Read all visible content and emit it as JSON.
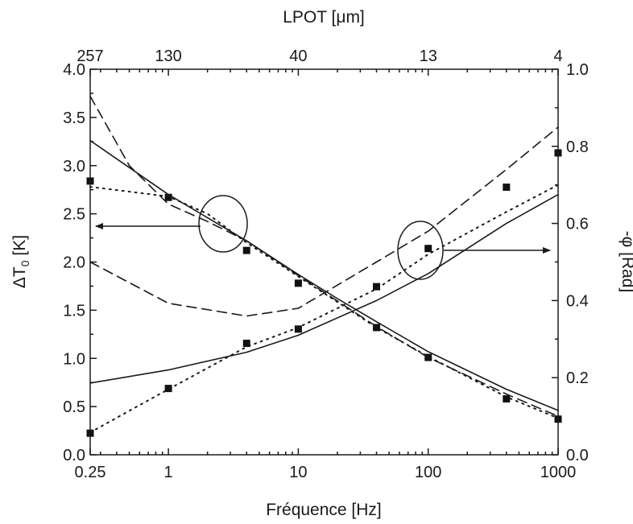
{
  "chart_data": {
    "type": "line",
    "x_scale": "log",
    "xlabel_bottom": "Fréquence [Hz]",
    "xlabel_top": "LPOT [μm]",
    "ylabel_left": "ΔT",
    "ylabel_left_subscript": "0",
    "ylabel_left_unit": "[K]",
    "ylabel_right": "-φ [Rad]",
    "xlim": [
      0.25,
      1000
    ],
    "ylim_left": [
      0,
      4
    ],
    "ylim_right": [
      0,
      1
    ],
    "bottom_ticks": [
      {
        "value": 0.25,
        "label": "0.25"
      },
      {
        "value": 1,
        "label": "1"
      },
      {
        "value": 10,
        "label": "10"
      },
      {
        "value": 100,
        "label": "100"
      },
      {
        "value": 1000,
        "label": "1000"
      }
    ],
    "top_ticks": [
      {
        "value": 0.25,
        "label": "257"
      },
      {
        "value": 1,
        "label": "130"
      },
      {
        "value": 10,
        "label": "40"
      },
      {
        "value": 100,
        "label": "13"
      },
      {
        "value": 1000,
        "label": "4"
      }
    ],
    "left_ticks": [
      {
        "value": 0.0,
        "label": "0.0"
      },
      {
        "value": 0.5,
        "label": "0.5"
      },
      {
        "value": 1.0,
        "label": "1.0"
      },
      {
        "value": 1.5,
        "label": "1.5"
      },
      {
        "value": 2.0,
        "label": "2.0"
      },
      {
        "value": 2.5,
        "label": "2.5"
      },
      {
        "value": 3.0,
        "label": "3.0"
      },
      {
        "value": 3.5,
        "label": "3.5"
      },
      {
        "value": 4.0,
        "label": "4.0"
      }
    ],
    "right_ticks": [
      {
        "value": 0.0,
        "label": "0.0"
      },
      {
        "value": 0.2,
        "label": "0.2"
      },
      {
        "value": 0.4,
        "label": "0.4"
      },
      {
        "value": 0.6,
        "label": "0.6"
      },
      {
        "value": 0.8,
        "label": "0.8"
      },
      {
        "value": 1.0,
        "label": "1.0"
      }
    ],
    "series": [
      {
        "axis": "left",
        "style": "markers",
        "x": [
          0.25,
          1,
          4,
          10,
          40,
          100,
          400,
          1000
        ],
        "y": [
          2.84,
          2.67,
          2.12,
          1.78,
          1.32,
          1.01,
          0.58,
          0.37
        ]
      },
      {
        "axis": "left",
        "style": "solid",
        "x": [
          0.25,
          1,
          4,
          10,
          20,
          40,
          100,
          400,
          1000
        ],
        "y": [
          3.26,
          2.7,
          2.22,
          1.87,
          1.62,
          1.38,
          1.07,
          0.68,
          0.46
        ]
      },
      {
        "axis": "left",
        "style": "dashed",
        "x": [
          0.25,
          0.5,
          1,
          2,
          4,
          10,
          40,
          100,
          400,
          1000
        ],
        "y": [
          3.72,
          3.0,
          2.6,
          2.42,
          2.22,
          1.86,
          1.33,
          1.01,
          0.63,
          0.4
        ]
      },
      {
        "axis": "left",
        "style": "dotted",
        "x": [
          0.25,
          1,
          2,
          4,
          10,
          40,
          100,
          400,
          1000
        ],
        "y": [
          2.78,
          2.68,
          2.5,
          2.2,
          1.85,
          1.32,
          1.02,
          0.6,
          0.38
        ]
      },
      {
        "axis": "right",
        "style": "markers",
        "x": [
          0.25,
          1,
          4,
          10,
          40,
          100,
          400,
          1000
        ],
        "y": [
          0.056,
          0.172,
          0.289,
          0.326,
          0.436,
          0.535,
          0.694,
          0.783
        ]
      },
      {
        "axis": "right",
        "style": "solid",
        "x": [
          0.25,
          1,
          4,
          10,
          40,
          100,
          400,
          1000
        ],
        "y": [
          0.186,
          0.22,
          0.266,
          0.31,
          0.4,
          0.47,
          0.6,
          0.675
        ]
      },
      {
        "axis": "right",
        "style": "dashed",
        "x": [
          0.25,
          1,
          4,
          10,
          40,
          100,
          400,
          1000
        ],
        "y": [
          0.5,
          0.393,
          0.36,
          0.38,
          0.5,
          0.58,
          0.74,
          0.85
        ]
      },
      {
        "axis": "right",
        "style": "dotted",
        "x": [
          0.25,
          1,
          4,
          10,
          40,
          100,
          400,
          1000
        ],
        "y": [
          0.058,
          0.17,
          0.28,
          0.33,
          0.43,
          0.52,
          0.63,
          0.7
        ]
      }
    ]
  }
}
